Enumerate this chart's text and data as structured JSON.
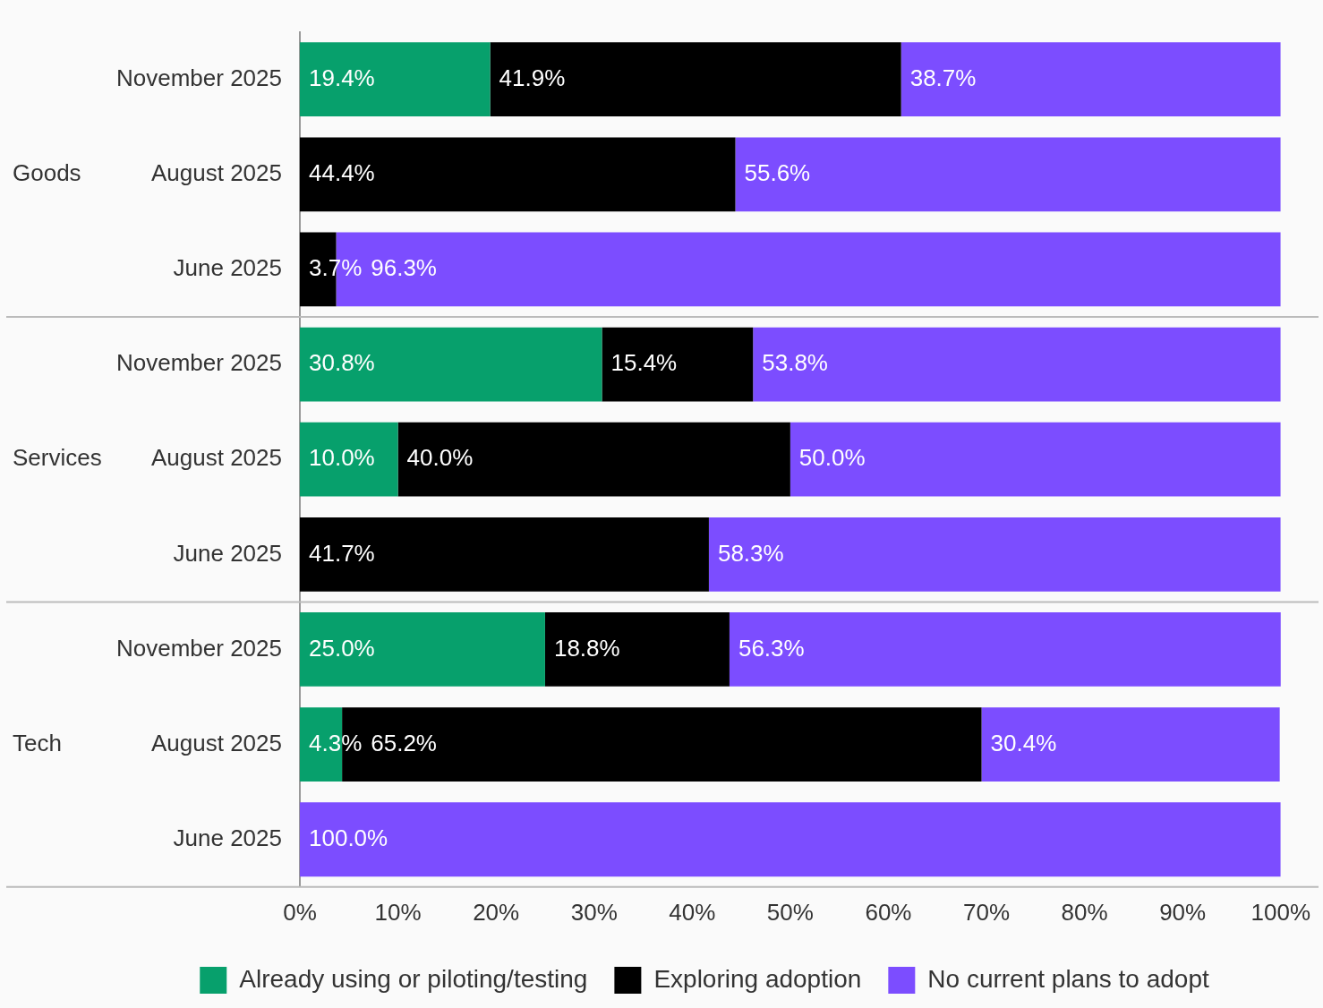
{
  "chart_data": {
    "type": "bar",
    "orientation": "horizontal",
    "stacked": true,
    "categories": [
      "November 2025",
      "August 2025",
      "June 2025",
      "November 2025",
      "August 2025",
      "June 2025",
      "November 2025",
      "August 2025",
      "June 2025"
    ],
    "annotations": [
      "Goods",
      "Services",
      "Tech"
    ],
    "series": [
      {
        "name": "Already using or piloting/testing",
        "color": "#07a06c",
        "values": [
          19.4,
          null,
          null,
          30.8,
          10.0,
          null,
          25.0,
          4.3,
          null
        ],
        "value_labels": [
          "19.4%",
          null,
          null,
          "30.8%",
          "10.0%",
          null,
          "25.0%",
          "4.3%",
          null
        ]
      },
      {
        "name": "Exploring adoption",
        "color": "#000000",
        "values": [
          41.9,
          44.4,
          3.7,
          15.4,
          40.0,
          41.7,
          18.8,
          65.2,
          null
        ],
        "value_labels": [
          "41.9%",
          "44.4%",
          "3.7%",
          "15.4%",
          "40.0%",
          "41.7%",
          "18.8%",
          "65.2%",
          null
        ]
      },
      {
        "name": "No current plans to adopt",
        "color": "#7c4dff",
        "values": [
          38.7,
          55.6,
          96.3,
          53.8,
          50.0,
          58.3,
          56.3,
          30.4,
          100.0
        ],
        "value_labels": [
          "38.7%",
          "55.6%",
          "96.3%",
          "53.8%",
          "50.0%",
          "58.3%",
          "56.3%",
          "30.4%",
          "100.0%"
        ]
      }
    ],
    "xlim": [
      0,
      100
    ],
    "xticks": [
      {
        "value": 0,
        "label": "0%"
      },
      {
        "value": 10,
        "label": "10%"
      },
      {
        "value": 20,
        "label": "20%"
      },
      {
        "value": 30,
        "label": "30%"
      },
      {
        "value": 40,
        "label": "40%"
      },
      {
        "value": 50,
        "label": "50%"
      },
      {
        "value": 60,
        "label": "60%"
      },
      {
        "value": 70,
        "label": "70%"
      },
      {
        "value": 80,
        "label": "80%"
      },
      {
        "value": 90,
        "label": "90%"
      },
      {
        "value": 100,
        "label": "100%"
      }
    ],
    "grid": false,
    "legend": "bottom"
  }
}
